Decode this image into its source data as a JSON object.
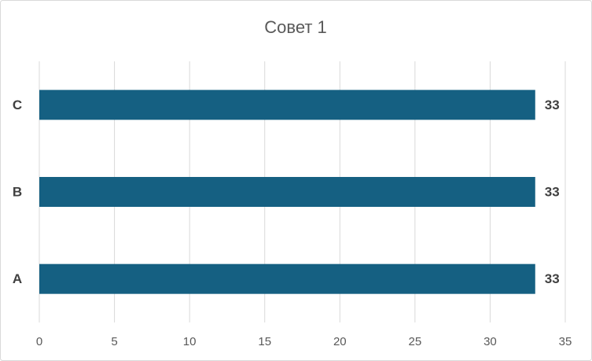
{
  "chart_data": {
    "type": "bar",
    "orientation": "horizontal",
    "title": "Совет 1",
    "categories": [
      "A",
      "B",
      "C"
    ],
    "values": [
      33,
      33,
      33
    ],
    "color": "#156082",
    "xlim": [
      0,
      35
    ],
    "xticks": [
      0,
      5,
      10,
      15,
      20,
      25,
      30,
      35
    ],
    "grid": true,
    "data_labels": true
  }
}
